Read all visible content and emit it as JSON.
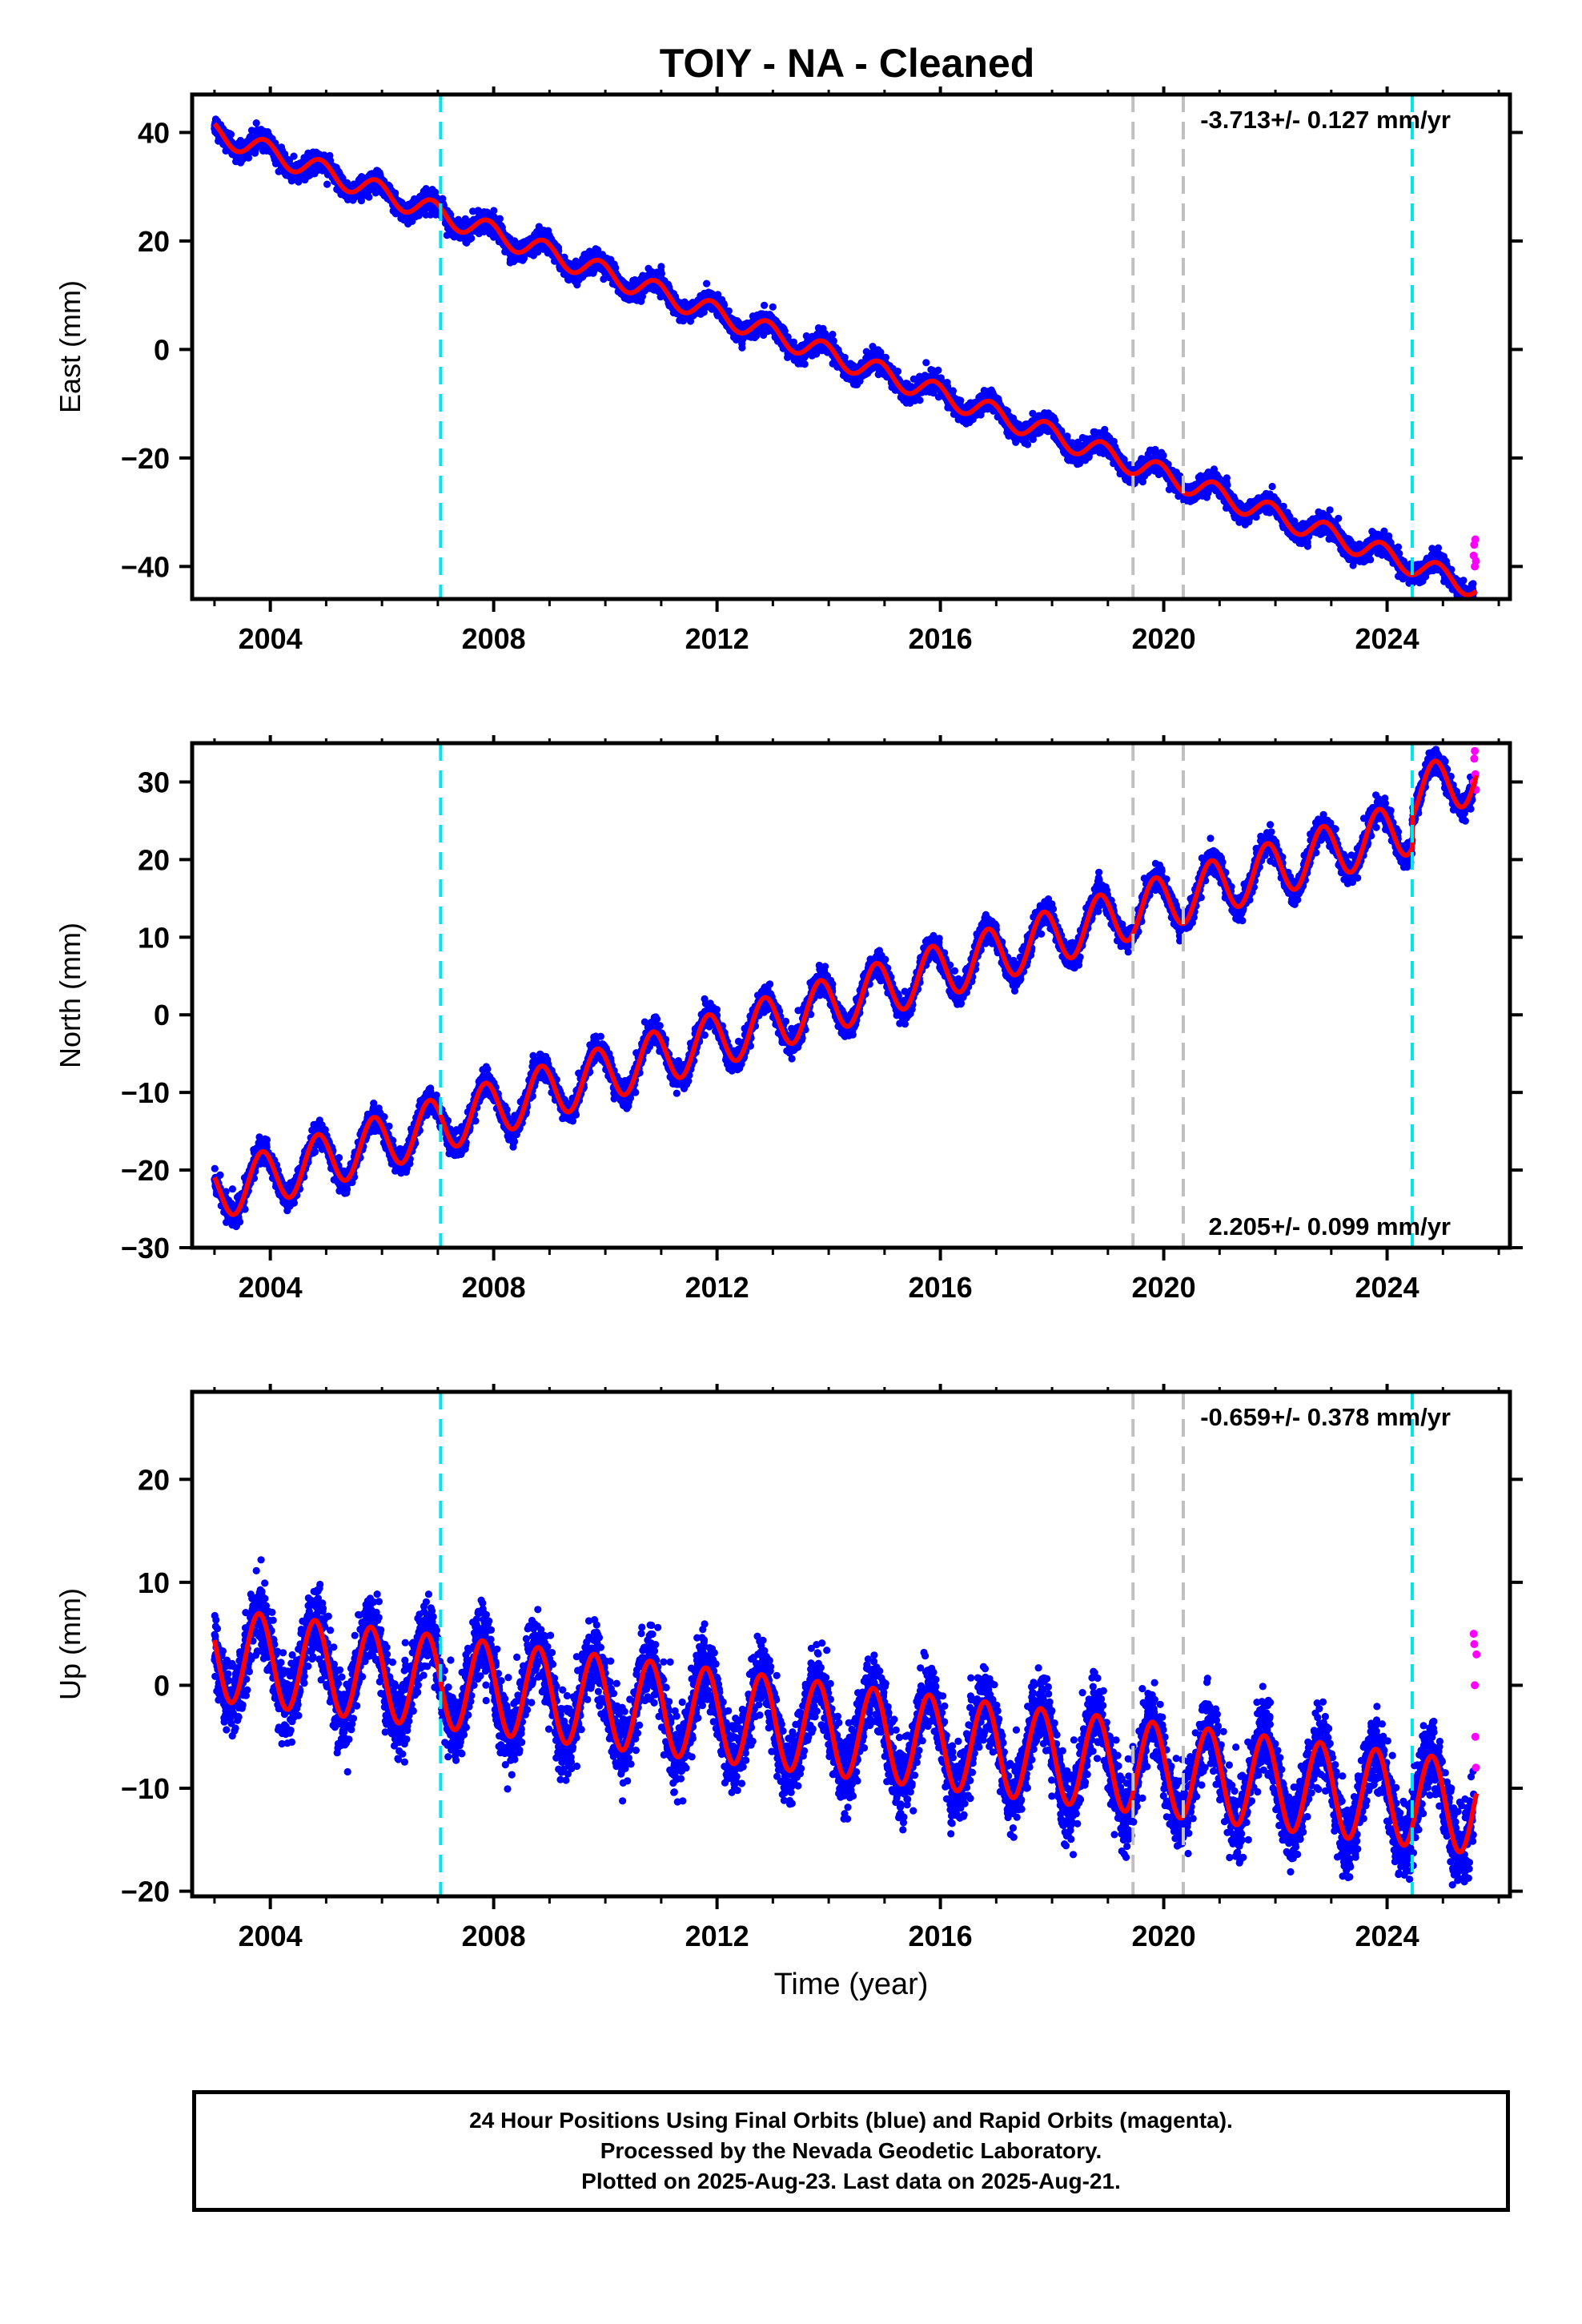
{
  "chart_data": {
    "title": "TOIY  - NA - Cleaned",
    "x_ticks": [
      2004,
      2008,
      2012,
      2016,
      2020,
      2024
    ],
    "xlim": [
      2002.6,
      2026.2
    ],
    "xlabel": "Time (year)",
    "offset_lines": {
      "cyan": [
        2007.05,
        2024.45
      ],
      "gray": [
        2019.45,
        2020.35
      ]
    },
    "colors": {
      "final_orbits": "#0000ff",
      "rapid_orbits": "#ff00ff",
      "model": "#ff0000",
      "equipment_change": "#00e5ee",
      "earthquake": "#c0c0c0"
    },
    "panels": [
      {
        "name": "East",
        "type": "scatter",
        "ylabel": "East (mm)",
        "ylim": [
          -46,
          47
        ],
        "y_ticks": [
          -40,
          -20,
          0,
          20,
          40
        ],
        "rate_label": "-3.713+/- 0.127 mm/yr",
        "rate_position": "top-right",
        "model": {
          "start_year": 2003.0,
          "start_value": 40,
          "rate": -3.713,
          "amplitude": 2.0,
          "phase": 0.65,
          "noise": 1.6
        },
        "rapid_values": [
          -38,
          -36,
          -40,
          -35,
          -39
        ]
      },
      {
        "name": "North",
        "type": "scatter",
        "ylabel": "North (mm)",
        "ylim": [
          -30,
          35
        ],
        "y_ticks": [
          -30,
          -20,
          -10,
          0,
          10,
          20,
          30
        ],
        "rate_label": "2.205+/- 0.099 mm/yr",
        "rate_position": "bottom-right",
        "model": {
          "start_year": 2003.0,
          "start_value": -23,
          "rate": 2.205,
          "amplitude": 3.5,
          "phase": 0.6,
          "noise": 1.4,
          "jump_at": 2024.45,
          "jump_size": 4
        },
        "rapid_values": [
          30,
          33,
          34,
          31,
          29
        ]
      },
      {
        "name": "Up",
        "type": "scatter",
        "ylabel": "Up (mm)",
        "ylim": [
          -20.5,
          28.5
        ],
        "y_ticks": [
          -20,
          -10,
          0,
          10,
          20
        ],
        "rate_label": "-0.659+/- 0.378 mm/yr",
        "rate_position": "top-right",
        "model": {
          "start_year": 2003.0,
          "start_value": 3,
          "rate": -0.659,
          "amplitude": 4.5,
          "phase": 0.55,
          "noise": 3.2
        },
        "rapid_values": [
          5,
          4,
          0,
          -5,
          -8,
          3
        ]
      }
    ]
  },
  "footer": {
    "line1": "24 Hour Positions Using Final Orbits (blue) and Rapid Orbits (magenta).",
    "line2": "Processed by the Nevada Geodetic Laboratory.",
    "line3": "Plotted on 2025-Aug-23. Last data on 2025-Aug-21."
  }
}
